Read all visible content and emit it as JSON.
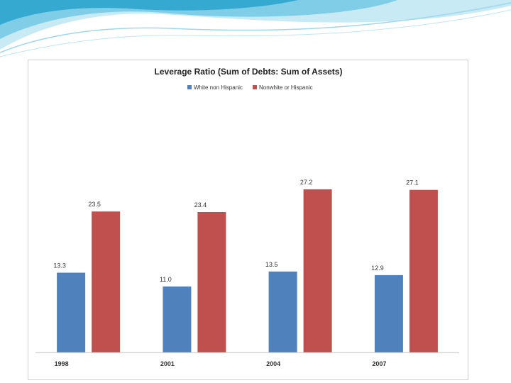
{
  "chart_data": {
    "type": "bar",
    "title": "Leverage Ratio (Sum of Debts: Sum of Assets)",
    "categories": [
      "1998",
      "2001",
      "2004",
      "2007"
    ],
    "series": [
      {
        "name": "White non Hispanic",
        "values": [
          13.3,
          11.0,
          13.5,
          12.9
        ],
        "labels": [
          "13.3",
          "11.0",
          "13.5",
          "12.9"
        ],
        "color": "#4f81bd"
      },
      {
        "name": "Nonwhite or Hispanic",
        "values": [
          23.5,
          23.4,
          27.2,
          27.1
        ],
        "labels": [
          "23.5",
          "23.4",
          "27.2",
          "27.1"
        ],
        "color": "#c0504d"
      }
    ],
    "ylim": [
      0,
      30
    ],
    "xlabel": "",
    "ylabel": "",
    "grid": false,
    "legend": "top-center"
  },
  "theme": {
    "wave_light": "#c7eaf5",
    "wave_mid": "#7fcde6",
    "wave_dark": "#36a9d1"
  }
}
